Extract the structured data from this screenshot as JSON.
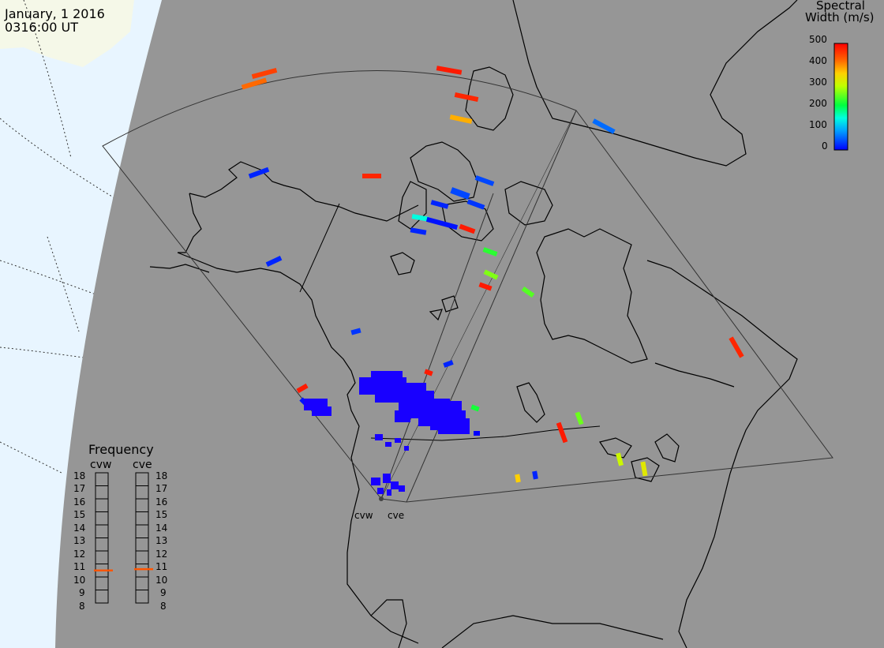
{
  "title": {
    "date": "January, 1 2016",
    "time": "0316:00 UT"
  },
  "colorbar": {
    "title_line1": "Spectral",
    "title_line2": "Width (m/s)",
    "ticks": [
      "500",
      "400",
      "300",
      "200",
      "100",
      "0"
    ],
    "min": 0,
    "max": 500
  },
  "frequency_panel": {
    "title": "Frequency",
    "radars": [
      "cvw",
      "cve"
    ],
    "scale_labels": [
      "18",
      "17",
      "16",
      "15",
      "14",
      "13",
      "12",
      "11",
      "10",
      "9",
      "8"
    ],
    "selected_mhz": [
      10.5,
      10.6
    ],
    "marker_color": "#ff5500"
  },
  "sites": {
    "labels": [
      "cvw",
      "cve"
    ]
  },
  "colors": {
    "ocean": "#e8f5ff",
    "land_outside": "#f5f8e8",
    "map_disc": "#969696",
    "coast": "#000000",
    "fov_outline": "#333333"
  },
  "echo_widths_ms": [
    450,
    420,
    480,
    470,
    380,
    60,
    470,
    20,
    40,
    40,
    20,
    30,
    150,
    10,
    480,
    20,
    230,
    20,
    480,
    250,
    270,
    20,
    480,
    30,
    470,
    260,
    480,
    310,
    330,
    220,
    360,
    20,
    480,
    10,
    0
  ]
}
